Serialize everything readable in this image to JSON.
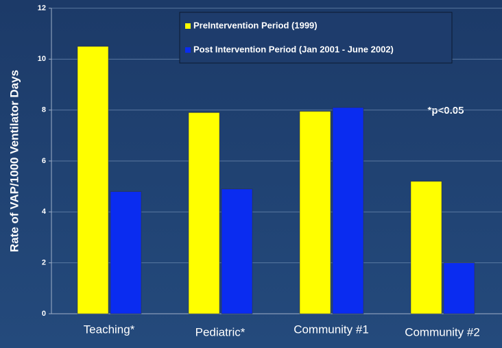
{
  "chart_data": {
    "type": "bar",
    "y_label": "Rate of VAP/1000 Ventilator Days",
    "annotation": "*p<0.05",
    "categories": [
      "Teaching*",
      "Pediatric*",
      "Community #1",
      "Community #2"
    ],
    "series": [
      {
        "name": "PreIntervention Period (1999)",
        "color": "#ffff00",
        "values": [
          10.5,
          7.9,
          7.95,
          5.2
        ]
      },
      {
        "name": "Post Intervention Period (Jan 2001 - June 2002)",
        "color": "#0a2cf0",
        "values": [
          4.8,
          4.9,
          8.1,
          2.0
        ]
      }
    ],
    "ylim": [
      0,
      12
    ],
    "yticks": [
      0,
      2,
      4,
      6,
      8,
      10,
      12
    ],
    "grid": true
  }
}
